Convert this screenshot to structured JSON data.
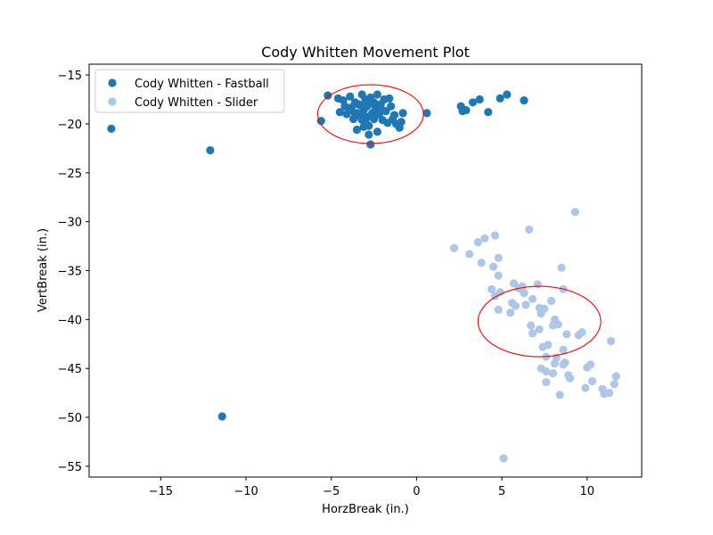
{
  "chart_data": {
    "type": "scatter",
    "title": "Cody Whitten Movement Plot",
    "xlabel": "HorzBreak (in.)",
    "ylabel": "VertBreak (in.)",
    "xlim": [
      -19.2,
      13.2
    ],
    "ylim": [
      -56.1,
      -13.9
    ],
    "xticks": [
      -15,
      -10,
      -5,
      0,
      5,
      10
    ],
    "yticks": [
      -15,
      -20,
      -25,
      -30,
      -35,
      -40,
      -45,
      -50,
      -55
    ],
    "xtick_labels": [
      "−15",
      "−10",
      "−5",
      "0",
      "5",
      "10"
    ],
    "ytick_labels": [
      "−15",
      "−20",
      "−25",
      "−30",
      "−35",
      "−40",
      "−45",
      "−50",
      "−55"
    ],
    "grid": false,
    "legend_position": "upper-left",
    "series": [
      {
        "name": "Cody Whitten - Fastball",
        "color": "#1f77b4",
        "points": [
          [
            -17.9,
            -20.5
          ],
          [
            -12.1,
            -22.7
          ],
          [
            -11.4,
            -49.9
          ],
          [
            -5.6,
            -19.7
          ],
          [
            -5.2,
            -17.1
          ],
          [
            -4.6,
            -17.4
          ],
          [
            -4.5,
            -18.8
          ],
          [
            -4.3,
            -17.6
          ],
          [
            -4.1,
            -19.0
          ],
          [
            -3.9,
            -17.2
          ],
          [
            -3.8,
            -18.3
          ],
          [
            -3.7,
            -19.5
          ],
          [
            -3.6,
            -17.8
          ],
          [
            -3.5,
            -20.6
          ],
          [
            -3.4,
            -18.0
          ],
          [
            -3.3,
            -19.2
          ],
          [
            -3.2,
            -17.0
          ],
          [
            -3.1,
            -18.6
          ],
          [
            -3.0,
            -19.8
          ],
          [
            -3.0,
            -17.5
          ],
          [
            -2.9,
            -18.2
          ],
          [
            -2.8,
            -20.2
          ],
          [
            -2.8,
            -21.1
          ],
          [
            -2.7,
            -22.1
          ],
          [
            -2.7,
            -17.3
          ],
          [
            -2.6,
            -18.9
          ],
          [
            -2.5,
            -19.5
          ],
          [
            -2.5,
            -17.8
          ],
          [
            -2.4,
            -18.4
          ],
          [
            -2.3,
            -20.8
          ],
          [
            -2.3,
            -17.0
          ],
          [
            -2.2,
            -19.0
          ],
          [
            -2.1,
            -18.0
          ],
          [
            -2.0,
            -19.6
          ],
          [
            -1.9,
            -17.5
          ],
          [
            -1.8,
            -18.7
          ],
          [
            -1.7,
            -19.9
          ],
          [
            -1.6,
            -17.4
          ],
          [
            -1.5,
            -18.2
          ],
          [
            -1.4,
            -19.5
          ],
          [
            -1.3,
            -19.1
          ],
          [
            -1.2,
            -20.0
          ],
          [
            -1.0,
            -20.4
          ],
          [
            -0.9,
            -19.8
          ],
          [
            -0.8,
            -18.9
          ],
          [
            -3.9,
            -18.6
          ],
          [
            -3.5,
            -18.9
          ],
          [
            -3.2,
            -19.6
          ],
          [
            -2.9,
            -19.3
          ],
          [
            -3.6,
            -19.0
          ],
          [
            -3.3,
            -18.1
          ],
          [
            -2.6,
            -17.9
          ],
          [
            -2.0,
            -18.6
          ],
          [
            -3.1,
            -20.3
          ],
          [
            -4.2,
            -18.2
          ],
          [
            0.6,
            -18.9
          ],
          [
            2.6,
            -18.2
          ],
          [
            2.7,
            -18.7
          ],
          [
            2.9,
            -18.6
          ],
          [
            3.3,
            -17.8
          ],
          [
            3.7,
            -17.5
          ],
          [
            4.2,
            -18.8
          ],
          [
            4.9,
            -17.4
          ],
          [
            5.3,
            -17.0
          ],
          [
            6.3,
            -17.6
          ]
        ]
      },
      {
        "name": "Cody Whitten - Slider",
        "color": "#aec7e8",
        "points": [
          [
            2.2,
            -32.7
          ],
          [
            3.1,
            -33.3
          ],
          [
            3.6,
            -32.1
          ],
          [
            3.8,
            -34.2
          ],
          [
            4.0,
            -31.7
          ],
          [
            4.6,
            -31.4
          ],
          [
            4.5,
            -34.6
          ],
          [
            4.8,
            -33.7
          ],
          [
            4.4,
            -36.9
          ],
          [
            4.6,
            -37.6
          ],
          [
            4.8,
            -35.5
          ],
          [
            4.9,
            -37.2
          ],
          [
            4.8,
            -39.0
          ],
          [
            5.5,
            -39.3
          ],
          [
            5.6,
            -38.3
          ],
          [
            5.7,
            -36.3
          ],
          [
            5.8,
            -38.6
          ],
          [
            6.0,
            -36.8
          ],
          [
            6.2,
            -36.6
          ],
          [
            6.3,
            -37.3
          ],
          [
            6.4,
            -38.5
          ],
          [
            6.6,
            -30.8
          ],
          [
            6.7,
            -40.6
          ],
          [
            6.8,
            -41.4
          ],
          [
            6.8,
            -37.9
          ],
          [
            7.1,
            -36.4
          ],
          [
            7.2,
            -38.8
          ],
          [
            7.2,
            -41.0
          ],
          [
            7.3,
            -39.4
          ],
          [
            7.4,
            -42.8
          ],
          [
            7.5,
            -38.9
          ],
          [
            7.6,
            -43.8
          ],
          [
            7.7,
            -42.6
          ],
          [
            7.9,
            -38.1
          ],
          [
            8.0,
            -40.6
          ],
          [
            8.1,
            -40.0
          ],
          [
            8.1,
            -44.5
          ],
          [
            8.2,
            -43.9
          ],
          [
            8.3,
            -40.5
          ],
          [
            8.4,
            -47.7
          ],
          [
            8.5,
            -34.7
          ],
          [
            8.6,
            -36.9
          ],
          [
            8.6,
            -43.1
          ],
          [
            8.7,
            -44.4
          ],
          [
            8.8,
            -41.5
          ],
          [
            8.9,
            -45.7
          ],
          [
            9.0,
            -46.0
          ],
          [
            9.3,
            -29.0
          ],
          [
            9.5,
            -41.6
          ],
          [
            9.7,
            -41.3
          ],
          [
            7.3,
            -45.0
          ],
          [
            7.6,
            -45.3
          ],
          [
            7.6,
            -46.4
          ],
          [
            8.0,
            -45.5
          ],
          [
            8.6,
            -44.6
          ],
          [
            9.9,
            -47.0
          ],
          [
            10.0,
            -44.9
          ],
          [
            10.2,
            -44.6
          ],
          [
            10.3,
            -46.3
          ],
          [
            10.9,
            -47.1
          ],
          [
            11.0,
            -47.6
          ],
          [
            11.3,
            -47.5
          ],
          [
            11.4,
            -42.2
          ],
          [
            11.6,
            -46.6
          ],
          [
            11.7,
            -45.8
          ],
          [
            5.1,
            -54.2
          ]
        ]
      }
    ],
    "ellipses": [
      {
        "center": [
          -2.7,
          -19.0
        ],
        "width": 6.2,
        "height": 6.0,
        "color": "#ff0000"
      },
      {
        "center": [
          7.2,
          -40.2
        ],
        "width": 7.2,
        "height": 7.2,
        "color": "#ff0000"
      }
    ]
  }
}
